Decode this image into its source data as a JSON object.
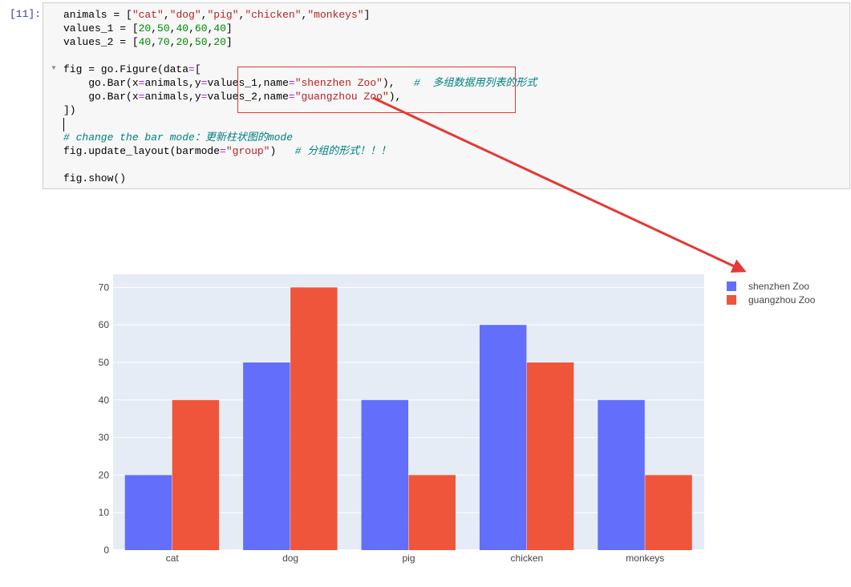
{
  "cell": {
    "prompt": "[11]:",
    "lines": [
      [
        [
          "animals = [",
          ""
        ],
        [
          "\"cat\"",
          "s"
        ],
        [
          ",",
          ""
        ],
        [
          "\"dog\"",
          "s"
        ],
        [
          ",",
          ""
        ],
        [
          "\"pig\"",
          "s"
        ],
        [
          ",",
          ""
        ],
        [
          "\"chicken\"",
          "s"
        ],
        [
          ",",
          ""
        ],
        [
          "\"monkeys\"",
          "s"
        ],
        [
          "]",
          ""
        ]
      ],
      [
        [
          "values_1 = [",
          ""
        ],
        [
          "20",
          "n"
        ],
        [
          ",",
          ""
        ],
        [
          "50",
          "n"
        ],
        [
          ",",
          ""
        ],
        [
          "40",
          "n"
        ],
        [
          ",",
          ""
        ],
        [
          "60",
          "n"
        ],
        [
          ",",
          ""
        ],
        [
          "40",
          "n"
        ],
        [
          "]",
          ""
        ]
      ],
      [
        [
          "values_2 = [",
          ""
        ],
        [
          "40",
          "n"
        ],
        [
          ",",
          ""
        ],
        [
          "70",
          "n"
        ],
        [
          ",",
          ""
        ],
        [
          "20",
          "n"
        ],
        [
          ",",
          ""
        ],
        [
          "50",
          "n"
        ],
        [
          ",",
          ""
        ],
        [
          "20",
          "n"
        ],
        [
          "]",
          ""
        ]
      ],
      [],
      [
        [
          "fig = go.Figure(data",
          ""
        ],
        [
          "=",
          "o"
        ],
        [
          "[",
          ""
        ]
      ],
      [
        [
          "    go.Bar(x",
          ""
        ],
        [
          "=",
          "o"
        ],
        [
          "animals,y",
          ""
        ],
        [
          "=",
          "o"
        ],
        [
          "values_1,name",
          ""
        ],
        [
          "=",
          "o"
        ],
        [
          "\"shenzhen Zoo\"",
          "s"
        ],
        [
          "),   ",
          ""
        ],
        [
          "#  多组数据用列表的形式",
          "c"
        ]
      ],
      [
        [
          "    go.Bar(x",
          ""
        ],
        [
          "=",
          "o"
        ],
        [
          "animals,y",
          ""
        ],
        [
          "=",
          "o"
        ],
        [
          "values_2,name",
          ""
        ],
        [
          "=",
          "o"
        ],
        [
          "\"guangzhou Zoo\"",
          "s"
        ],
        [
          "),",
          ""
        ]
      ],
      [
        [
          "])",
          ""
        ]
      ],
      [],
      [
        [
          "# change the bar mode：更新柱状图的mode",
          "c"
        ]
      ],
      [
        [
          "fig.update_layout(barmode",
          ""
        ],
        [
          "=",
          "o"
        ],
        [
          "\"group\"",
          "s"
        ],
        [
          ")   ",
          ""
        ],
        [
          "# 分组的形式！！！",
          "c"
        ]
      ],
      [],
      [
        [
          "fig.show()",
          ""
        ]
      ]
    ]
  },
  "annotation": {
    "color": "#e53935"
  },
  "chart_data": {
    "type": "bar",
    "barmode": "group",
    "categories": [
      "cat",
      "dog",
      "pig",
      "chicken",
      "monkeys"
    ],
    "series": [
      {
        "name": "shenzhen Zoo",
        "values": [
          20,
          50,
          40,
          60,
          40
        ],
        "color": "#636efa"
      },
      {
        "name": "guangzhou Zoo",
        "values": [
          40,
          70,
          20,
          50,
          20
        ],
        "color": "#ef553b"
      }
    ],
    "yticks": [
      0,
      10,
      20,
      30,
      40,
      50,
      60,
      70
    ],
    "ylim": [
      0,
      73.5
    ],
    "grid": true,
    "plot_bgcolor": "#e5ecf6",
    "legend_position": "top-right"
  }
}
